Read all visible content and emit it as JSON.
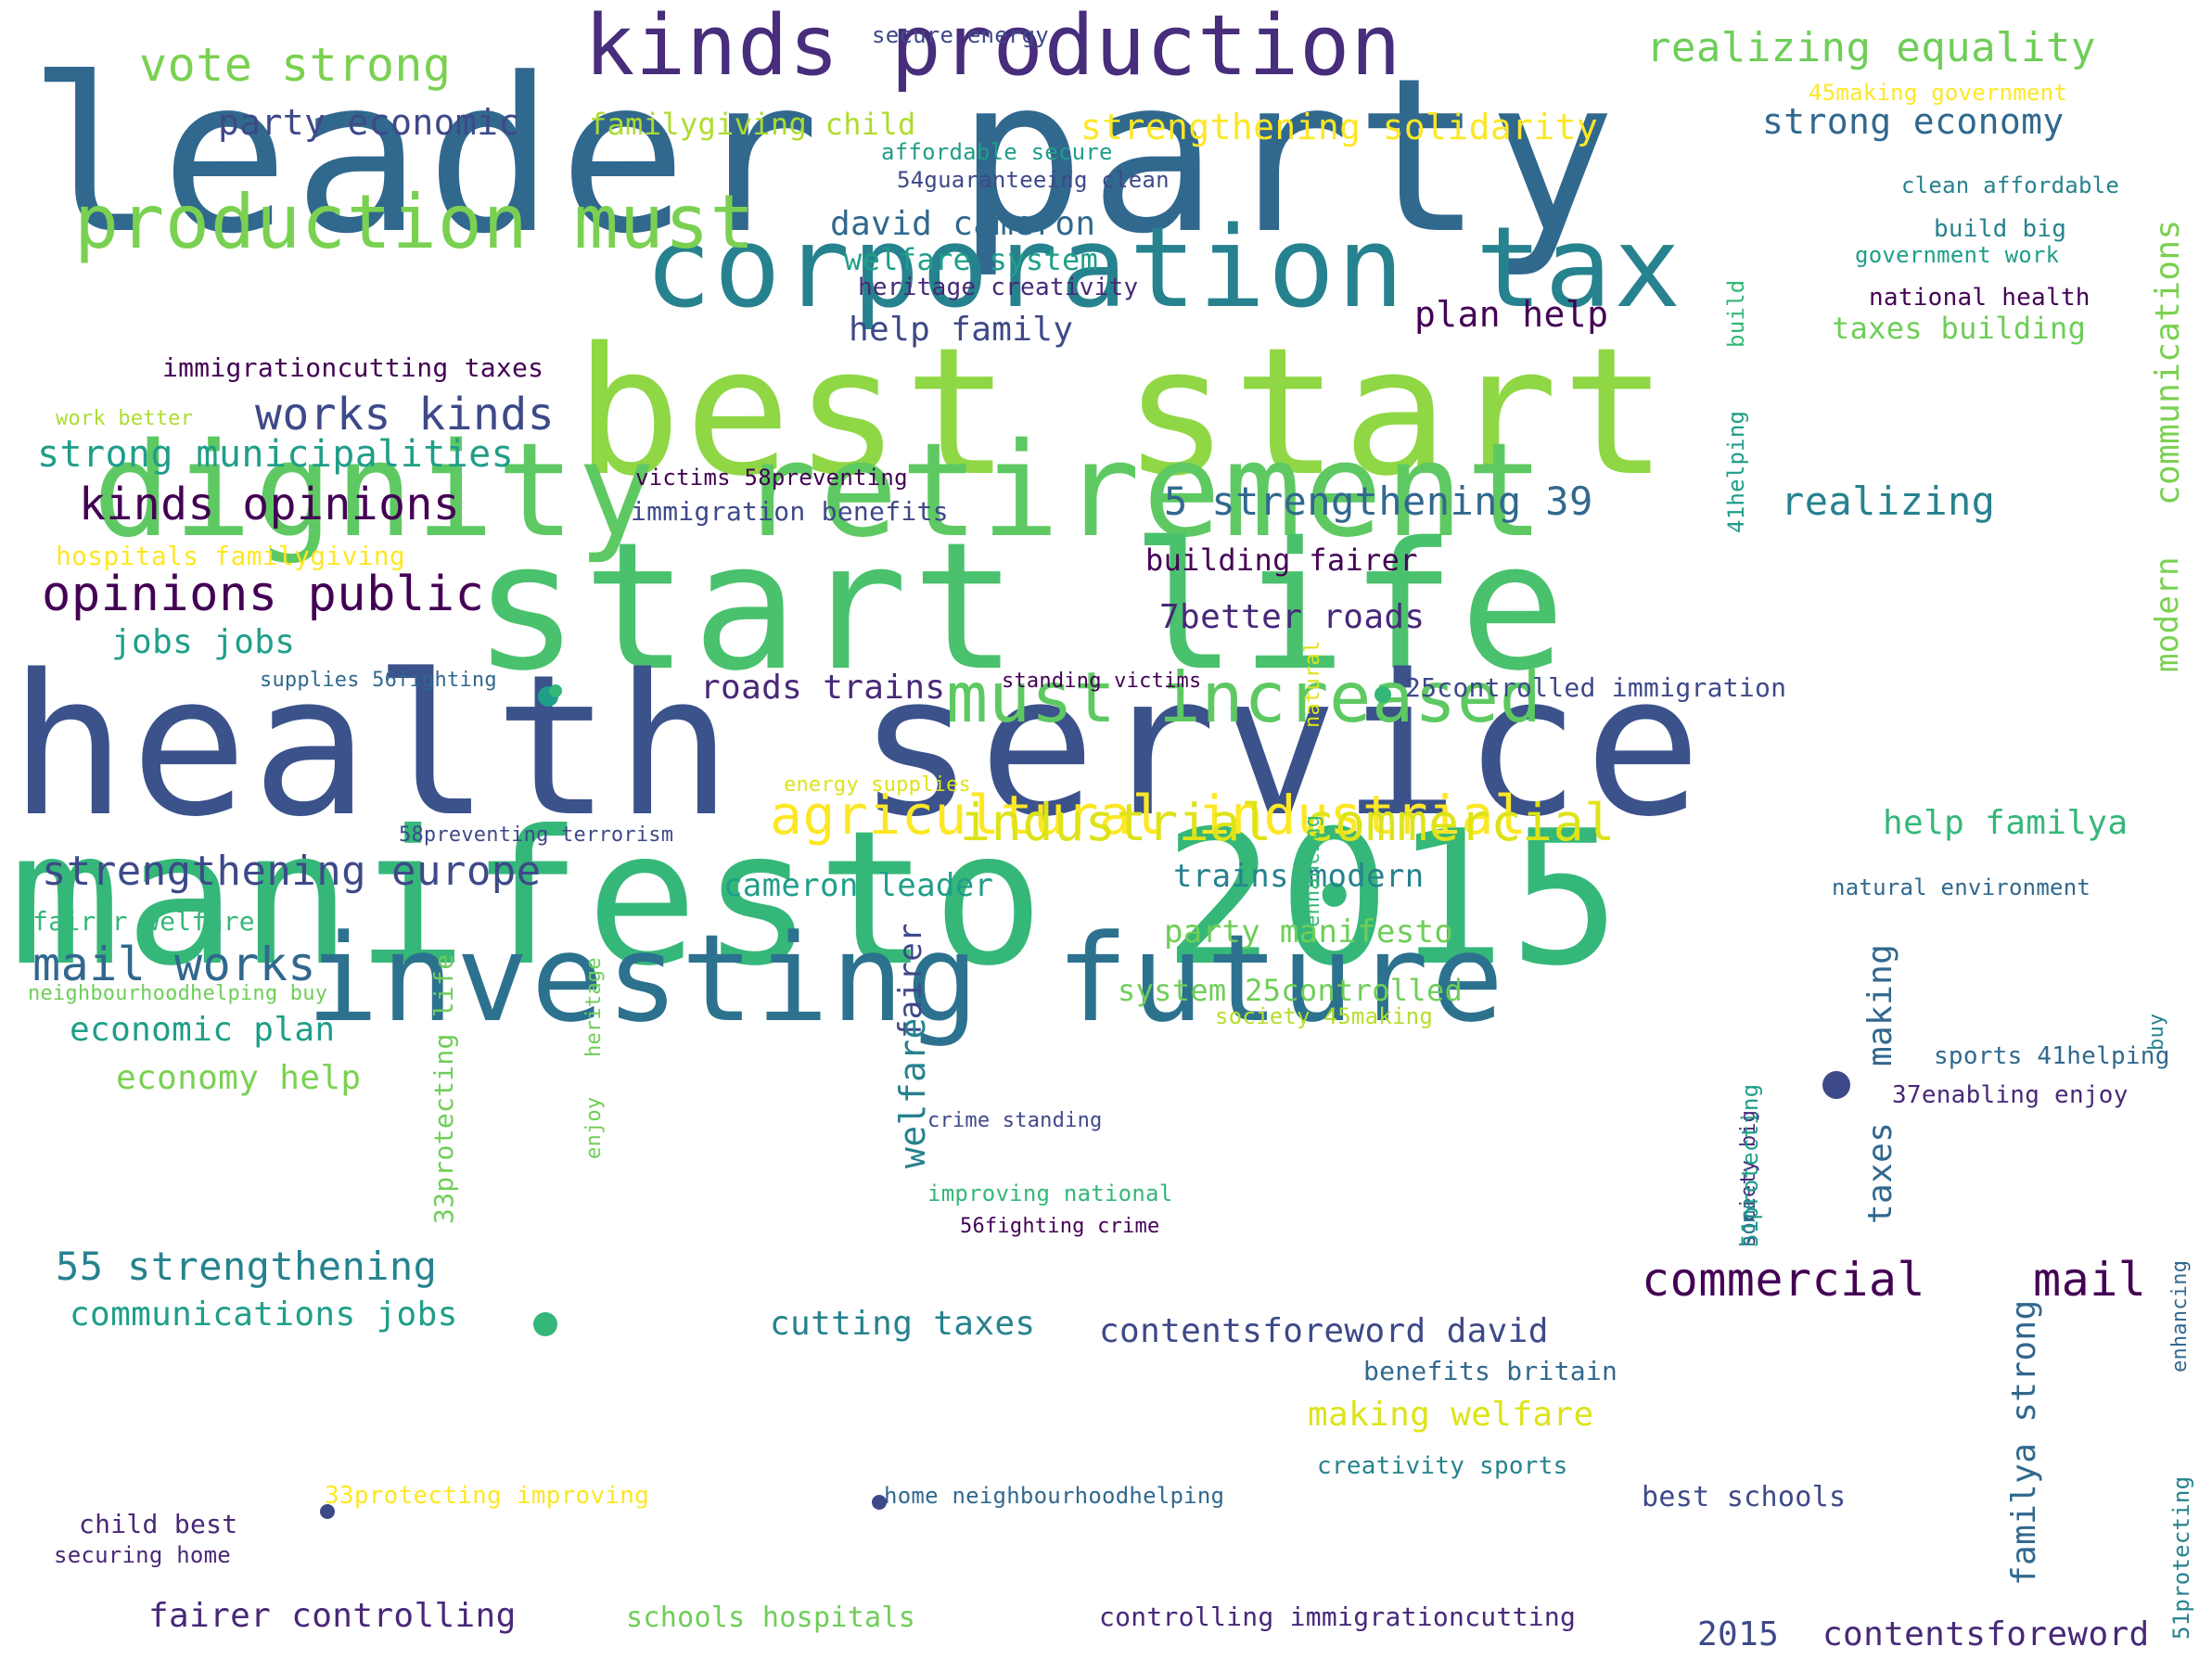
{
  "colors": [
    "#440154",
    "#482878",
    "#3e4989",
    "#31688e",
    "#26828e",
    "#1f9e89",
    "#35b779",
    "#6ece58",
    "#b5de2b",
    "#fde725"
  ],
  "words": [
    {
      "text": "leader party",
      "size": 230,
      "color": "#31688e",
      "orient": "h"
    },
    {
      "text": "corporation tax",
      "size": 120,
      "color": "#26828e",
      "orient": "h"
    },
    {
      "text": "best start",
      "size": 190,
      "color": "#8fd744",
      "orient": "h"
    },
    {
      "text": "dignity retirement",
      "size": 140,
      "color": "#5ec962",
      "orient": "h"
    },
    {
      "text": "start life",
      "size": 190,
      "color": "#4ac16d",
      "orient": "h"
    },
    {
      "text": "health service",
      "size": 210,
      "color": "#3b528b",
      "orient": "h"
    },
    {
      "text": "manifesto 2015",
      "size": 200,
      "color": "#35b779",
      "orient": "h"
    },
    {
      "text": "investing future",
      "size": 130,
      "color": "#2c728e",
      "orient": "h"
    },
    {
      "text": "kinds production",
      "size": 90,
      "color": "#472d7b",
      "orient": "h"
    },
    {
      "text": "production must",
      "size": 80,
      "color": "#7ad151",
      "orient": "h"
    },
    {
      "text": "must increased",
      "size": 75,
      "color": "#5ec962",
      "orient": "h"
    },
    {
      "text": "agricultural industrial",
      "size": 58,
      "color": "#fde725",
      "orient": "h"
    },
    {
      "text": "industrial commercial",
      "size": 55,
      "color": "#dde318",
      "orient": "h"
    },
    {
      "text": "vote strong",
      "size": 50,
      "color": "#7ad151",
      "orient": "h"
    },
    {
      "text": "realizing equality",
      "size": 44,
      "color": "#6ece58",
      "orient": "h"
    },
    {
      "text": "party economic",
      "size": 38,
      "color": "#3e4989",
      "orient": "h"
    },
    {
      "text": "familygiving child",
      "size": 32,
      "color": "#addc30",
      "orient": "h"
    },
    {
      "text": "strengthening solidarity",
      "size": 38,
      "color": "#fde725",
      "orient": "h"
    },
    {
      "text": "strong economy",
      "size": 38,
      "color": "#31688e",
      "orient": "h"
    },
    {
      "text": "secure energy",
      "size": 24,
      "color": "#3e4989",
      "orient": "h"
    },
    {
      "text": "45making government",
      "size": 24,
      "color": "#fde725",
      "orient": "h"
    },
    {
      "text": "affordable secure",
      "size": 24,
      "color": "#1f9e89",
      "orient": "h"
    },
    {
      "text": "54guaranteeing clean",
      "size": 24,
      "color": "#3e4989",
      "orient": "h"
    },
    {
      "text": "clean affordable",
      "size": 24,
      "color": "#26828e",
      "orient": "h"
    },
    {
      "text": "david cameron",
      "size": 36,
      "color": "#31688e",
      "orient": "h"
    },
    {
      "text": "welfare system",
      "size": 32,
      "color": "#1f9e89",
      "orient": "h"
    },
    {
      "text": "heritage creativity",
      "size": 26,
      "color": "#482878",
      "orient": "h"
    },
    {
      "text": "build big",
      "size": 26,
      "color": "#26828e",
      "orient": "h"
    },
    {
      "text": "government work",
      "size": 24,
      "color": "#1f9e89",
      "orient": "h"
    },
    {
      "text": "national health",
      "size": 26,
      "color": "#440154",
      "orient": "h"
    },
    {
      "text": "help family",
      "size": 36,
      "color": "#3e4989",
      "orient": "h"
    },
    {
      "text": "plan help",
      "size": 38,
      "color": "#440154",
      "orient": "h"
    },
    {
      "text": "taxes building",
      "size": 32,
      "color": "#6ece58",
      "orient": "h"
    },
    {
      "text": "immigrationcutting taxes",
      "size": 28,
      "color": "#440154",
      "orient": "h"
    },
    {
      "text": "work better",
      "size": 22,
      "color": "#addc30",
      "orient": "h"
    },
    {
      "text": "works kinds",
      "size": 48,
      "color": "#3e4989",
      "orient": "h"
    },
    {
      "text": "strong municipalities",
      "size": 40,
      "color": "#1f9e89",
      "orient": "h"
    },
    {
      "text": "victims 58preventing",
      "size": 24,
      "color": "#440154",
      "orient": "h"
    },
    {
      "text": "kinds opinions",
      "size": 48,
      "color": "#440154",
      "orient": "h"
    },
    {
      "text": "immigration benefits",
      "size": 28,
      "color": "#3e4989",
      "orient": "h"
    },
    {
      "text": "5 strengthening 39",
      "size": 42,
      "color": "#31688e",
      "orient": "h"
    },
    {
      "text": "realizing",
      "size": 42,
      "color": "#26828e",
      "orient": "h"
    },
    {
      "text": "hospitals familygiving",
      "size": 28,
      "color": "#fde725",
      "orient": "h"
    },
    {
      "text": "building fairer",
      "size": 32,
      "color": "#440154",
      "orient": "h"
    },
    {
      "text": "opinions public",
      "size": 52,
      "color": "#440154",
      "orient": "h"
    },
    {
      "text": "7better roads",
      "size": 36,
      "color": "#482878",
      "orient": "h"
    },
    {
      "text": "jobs jobs",
      "size": 36,
      "color": "#1f9e89",
      "orient": "h"
    },
    {
      "text": "supplies 56fighting",
      "size": 22,
      "color": "#31688e",
      "orient": "h"
    },
    {
      "text": "roads trains",
      "size": 36,
      "color": "#482878",
      "orient": "h"
    },
    {
      "text": "standing victims",
      "size": 22,
      "color": "#440154",
      "orient": "h"
    },
    {
      "text": "25controlled immigration",
      "size": 28,
      "color": "#3e4989",
      "orient": "h"
    },
    {
      "text": "energy supplies",
      "size": 22,
      "color": "#dde318",
      "orient": "h"
    },
    {
      "text": "58preventing terrorism",
      "size": 22,
      "color": "#3e4989",
      "orient": "h"
    },
    {
      "text": "help familya",
      "size": 36,
      "color": "#35b779",
      "orient": "h"
    },
    {
      "text": "strengthening europe",
      "size": 44,
      "color": "#3e4989",
      "orient": "h"
    },
    {
      "text": "cameron leader",
      "size": 34,
      "color": "#1f9e89",
      "orient": "h"
    },
    {
      "text": "trains modern",
      "size": 34,
      "color": "#26828e",
      "orient": "h"
    },
    {
      "text": "natural environment",
      "size": 24,
      "color": "#31688e",
      "orient": "h"
    },
    {
      "text": "fairer welfare",
      "size": 28,
      "color": "#35b779",
      "orient": "h"
    },
    {
      "text": "mail works",
      "size": 50,
      "color": "#31688e",
      "orient": "h"
    },
    {
      "text": "party manifesto",
      "size": 34,
      "color": "#6ece58",
      "orient": "h"
    },
    {
      "text": "system 25controlled",
      "size": 32,
      "color": "#6ece58",
      "orient": "h"
    },
    {
      "text": "neighbourhoodhelping buy",
      "size": 22,
      "color": "#6ece58",
      "orient": "h"
    },
    {
      "text": "society 45making",
      "size": 24,
      "color": "#b5de2b",
      "orient": "h"
    },
    {
      "text": "economic plan",
      "size": 36,
      "color": "#1f9e89",
      "orient": "h"
    },
    {
      "text": "sports 41helping",
      "size": 26,
      "color": "#31688e",
      "orient": "h"
    },
    {
      "text": "economy help",
      "size": 36,
      "color": "#7ad151",
      "orient": "h"
    },
    {
      "text": "37enabling enjoy",
      "size": 26,
      "color": "#482878",
      "orient": "h"
    },
    {
      "text": "crime standing",
      "size": 22,
      "color": "#3e4989",
      "orient": "h"
    },
    {
      "text": "improving national",
      "size": 24,
      "color": "#35b779",
      "orient": "h"
    },
    {
      "text": "56fighting crime",
      "size": 22,
      "color": "#440154",
      "orient": "h"
    },
    {
      "text": "55 strengthening",
      "size": 42,
      "color": "#26828e",
      "orient": "h"
    },
    {
      "text": "commercial",
      "size": 50,
      "color": "#440154",
      "orient": "h"
    },
    {
      "text": "mail",
      "size": 50,
      "color": "#440154",
      "orient": "h"
    },
    {
      "text": "communications jobs",
      "size": 36,
      "color": "#1f9e89",
      "orient": "h"
    },
    {
      "text": "cutting taxes",
      "size": 36,
      "color": "#26828e",
      "orient": "h"
    },
    {
      "text": "contentsforeword david",
      "size": 36,
      "color": "#3e4989",
      "orient": "h"
    },
    {
      "text": "benefits britain",
      "size": 28,
      "color": "#31688e",
      "orient": "h"
    },
    {
      "text": "making welfare",
      "size": 36,
      "color": "#dde318",
      "orient": "h"
    },
    {
      "text": "creativity sports",
      "size": 26,
      "color": "#26828e",
      "orient": "h"
    },
    {
      "text": "33protecting improving",
      "size": 26,
      "color": "#fde725",
      "orient": "h"
    },
    {
      "text": "home neighbourhoodhelping",
      "size": 24,
      "color": "#31688e",
      "orient": "h"
    },
    {
      "text": "best schools",
      "size": 30,
      "color": "#3e4989",
      "orient": "h"
    },
    {
      "text": "child best",
      "size": 28,
      "color": "#482878",
      "orient": "h"
    },
    {
      "text": "securing home",
      "size": 24,
      "color": "#482878",
      "orient": "h"
    },
    {
      "text": "fairer controlling",
      "size": 36,
      "color": "#482878",
      "orient": "h"
    },
    {
      "text": "schools hospitals",
      "size": 30,
      "color": "#6ece58",
      "orient": "h"
    },
    {
      "text": "controlling immigrationcutting",
      "size": 28,
      "color": "#482878",
      "orient": "h"
    },
    {
      "text": "2015",
      "size": 36,
      "color": "#3e4989",
      "orient": "h"
    },
    {
      "text": "contentsforeword",
      "size": 36,
      "color": "#482878",
      "orient": "h"
    },
    {
      "text": "communications",
      "size": 36,
      "color": "#7ad151",
      "orient": "v"
    },
    {
      "text": "modern",
      "size": 34,
      "color": "#7ad151",
      "orient": "v"
    },
    {
      "text": "build",
      "size": 24,
      "color": "#35b779",
      "orient": "v"
    },
    {
      "text": "41helping",
      "size": 24,
      "color": "#1f9e89",
      "orient": "v"
    },
    {
      "text": "natural",
      "size": 22,
      "color": "#dde318",
      "orient": "v"
    },
    {
      "text": "enhancing",
      "size": 22,
      "color": "#35b779",
      "orient": "v"
    },
    {
      "text": "fairer",
      "size": 34,
      "color": "#3e4989",
      "orient": "v"
    },
    {
      "text": "welfare",
      "size": 38,
      "color": "#26828e",
      "orient": "v"
    },
    {
      "text": "making",
      "size": 36,
      "color": "#31688e",
      "orient": "v"
    },
    {
      "text": "taxes",
      "size": 36,
      "color": "#31688e",
      "orient": "v"
    },
    {
      "text": "familya strong",
      "size": 36,
      "color": "#31688e",
      "orient": "v"
    },
    {
      "text": "33protecting life",
      "size": 28,
      "color": "#6ece58",
      "orient": "v"
    },
    {
      "text": "heritage",
      "size": 22,
      "color": "#6ece58",
      "orient": "v"
    },
    {
      "text": "enjoy",
      "size": 22,
      "color": "#6ece58",
      "orient": "v"
    },
    {
      "text": "society big",
      "size": 22,
      "color": "#482878",
      "orient": "v"
    },
    {
      "text": "51protecting",
      "size": 24,
      "color": "#1f9e89",
      "orient": "v"
    },
    {
      "text": "home",
      "size": 22,
      "color": "#26828e",
      "orient": "v"
    },
    {
      "text": "buy",
      "size": 22,
      "color": "#26828e",
      "orient": "v"
    },
    {
      "text": "enhancing",
      "size": 22,
      "color": "#31688e",
      "orient": "v"
    },
    {
      "text": "51protecting",
      "size": 24,
      "color": "#26828e",
      "orient": "v"
    }
  ]
}
